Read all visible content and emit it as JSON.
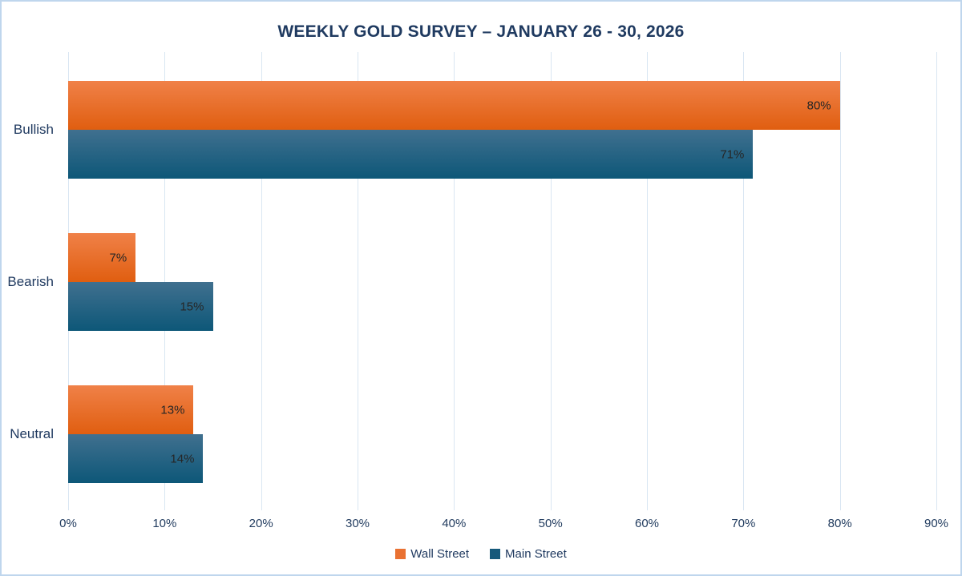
{
  "page": {
    "background": "#FFFFFF",
    "border_color": "#BFD6ED"
  },
  "chart_data": {
    "type": "bar",
    "orientation": "horizontal",
    "title": "WEEKLY GOLD SURVEY – JANUARY 26 - 30, 2026",
    "title_color": "#1F3A60",
    "categories": [
      "Bullish",
      "Bearish",
      "Neutral"
    ],
    "series": [
      {
        "name": "Wall Street",
        "values": [
          80,
          7,
          13
        ],
        "labels": [
          "80%",
          "7%",
          "13%"
        ],
        "color_top": "#F08148",
        "color_bottom": "#E05E10",
        "legend_color": "#E97132"
      },
      {
        "name": "Main Street",
        "values": [
          71,
          15,
          14
        ],
        "labels": [
          "71%",
          "15%",
          "14%"
        ],
        "color_top": "#40708F",
        "color_bottom": "#0D5778",
        "legend_color": "#15597B"
      }
    ],
    "xlabel": "",
    "ylabel": "",
    "xlim": [
      0,
      90
    ],
    "x_tick_values": [
      0,
      10,
      20,
      30,
      40,
      50,
      60,
      70,
      80,
      90
    ],
    "x_ticks": [
      "0%",
      "10%",
      "20%",
      "30%",
      "40%",
      "50%",
      "60%",
      "70%",
      "80%",
      "90%"
    ],
    "grid": true,
    "gridline_color": "#D9E6F2",
    "data_label_color": "#262626",
    "axis_text_color": "#223C5F",
    "legend_position": "bottom"
  }
}
